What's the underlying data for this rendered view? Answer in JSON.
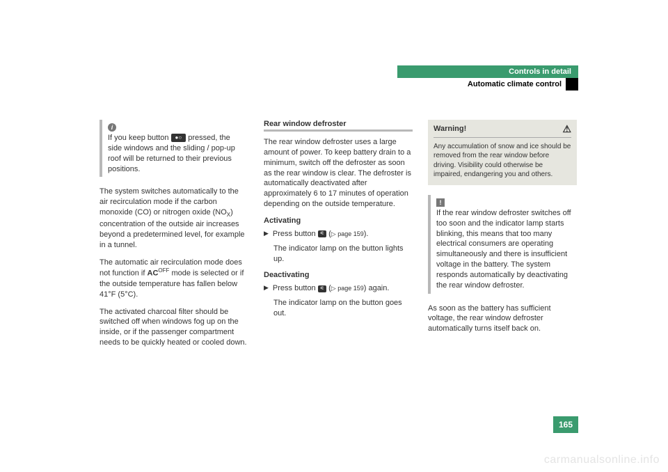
{
  "header": {
    "chapter": "Controls in detail",
    "section": "Automatic climate control"
  },
  "col1": {
    "info_icon": "i",
    "info1a": "If you keep button ",
    "info_btn": "●○",
    "info1b": " pressed, the side windows and the sliding / pop-up roof will be returned to their previous positions.",
    "p1a": "The system switches automatically to the air recirculation mode if the carbon monoxide (CO) or nitrogen oxide (NO",
    "p1_sub": "X",
    "p1b": ") concentration of the outside air increases beyond a predetermined level, for example in a tunnel.",
    "p2a": "The automatic air recirculation mode does not function if ",
    "p2_bold": "AC",
    "p2_sup": "OFF",
    "p2b": " mode is selected or if the outside temperature has fallen below 41°F (5°C).",
    "p3": "The activated charcoal filter should be switched off when windows fog up on the inside, or if the passenger compartment needs to be quickly heated or cooled down."
  },
  "col2": {
    "h3": "Rear window defroster",
    "p1": "The rear window defroster uses a large amount of power. To keep battery drain to a minimum, switch off the defroster as soon as the rear window is clear. The defroster is automatically deactivated after approximately 6 to 17 minutes of operation depending on the outside temperature.",
    "h4a": "Activating",
    "step1a": "Press button ",
    "step_btn": "⚟",
    "step1b": " (",
    "step1_ref": "▷ page 159",
    "step1c": ").",
    "step1_result": "The indicator lamp on the button lights up.",
    "h4b": "Deactivating",
    "step2a": "Press button ",
    "step2b": " (",
    "step2_ref": "▷ page 159",
    "step2c": ") again.",
    "step2_result": "The indicator lamp on the button goes out."
  },
  "col3": {
    "warn_title": "Warning!",
    "warn_body": "Any accumulation of snow and ice should be removed from the rear window before driving. Visibility could otherwise be impaired, endangering you and others.",
    "excl_icon": "!",
    "info_body": "If the rear window defroster switches off too soon and the indicator lamp starts blinking, this means that too many electrical consumers are operating simultaneously and there is insufficient voltage in the battery. The system responds automatically by deactivating the rear window defroster.",
    "p_after": "As soon as the battery has sufficient voltage, the rear window defroster automatically turns itself back on."
  },
  "page_number": "165",
  "watermark": "carmanualsonline.info"
}
